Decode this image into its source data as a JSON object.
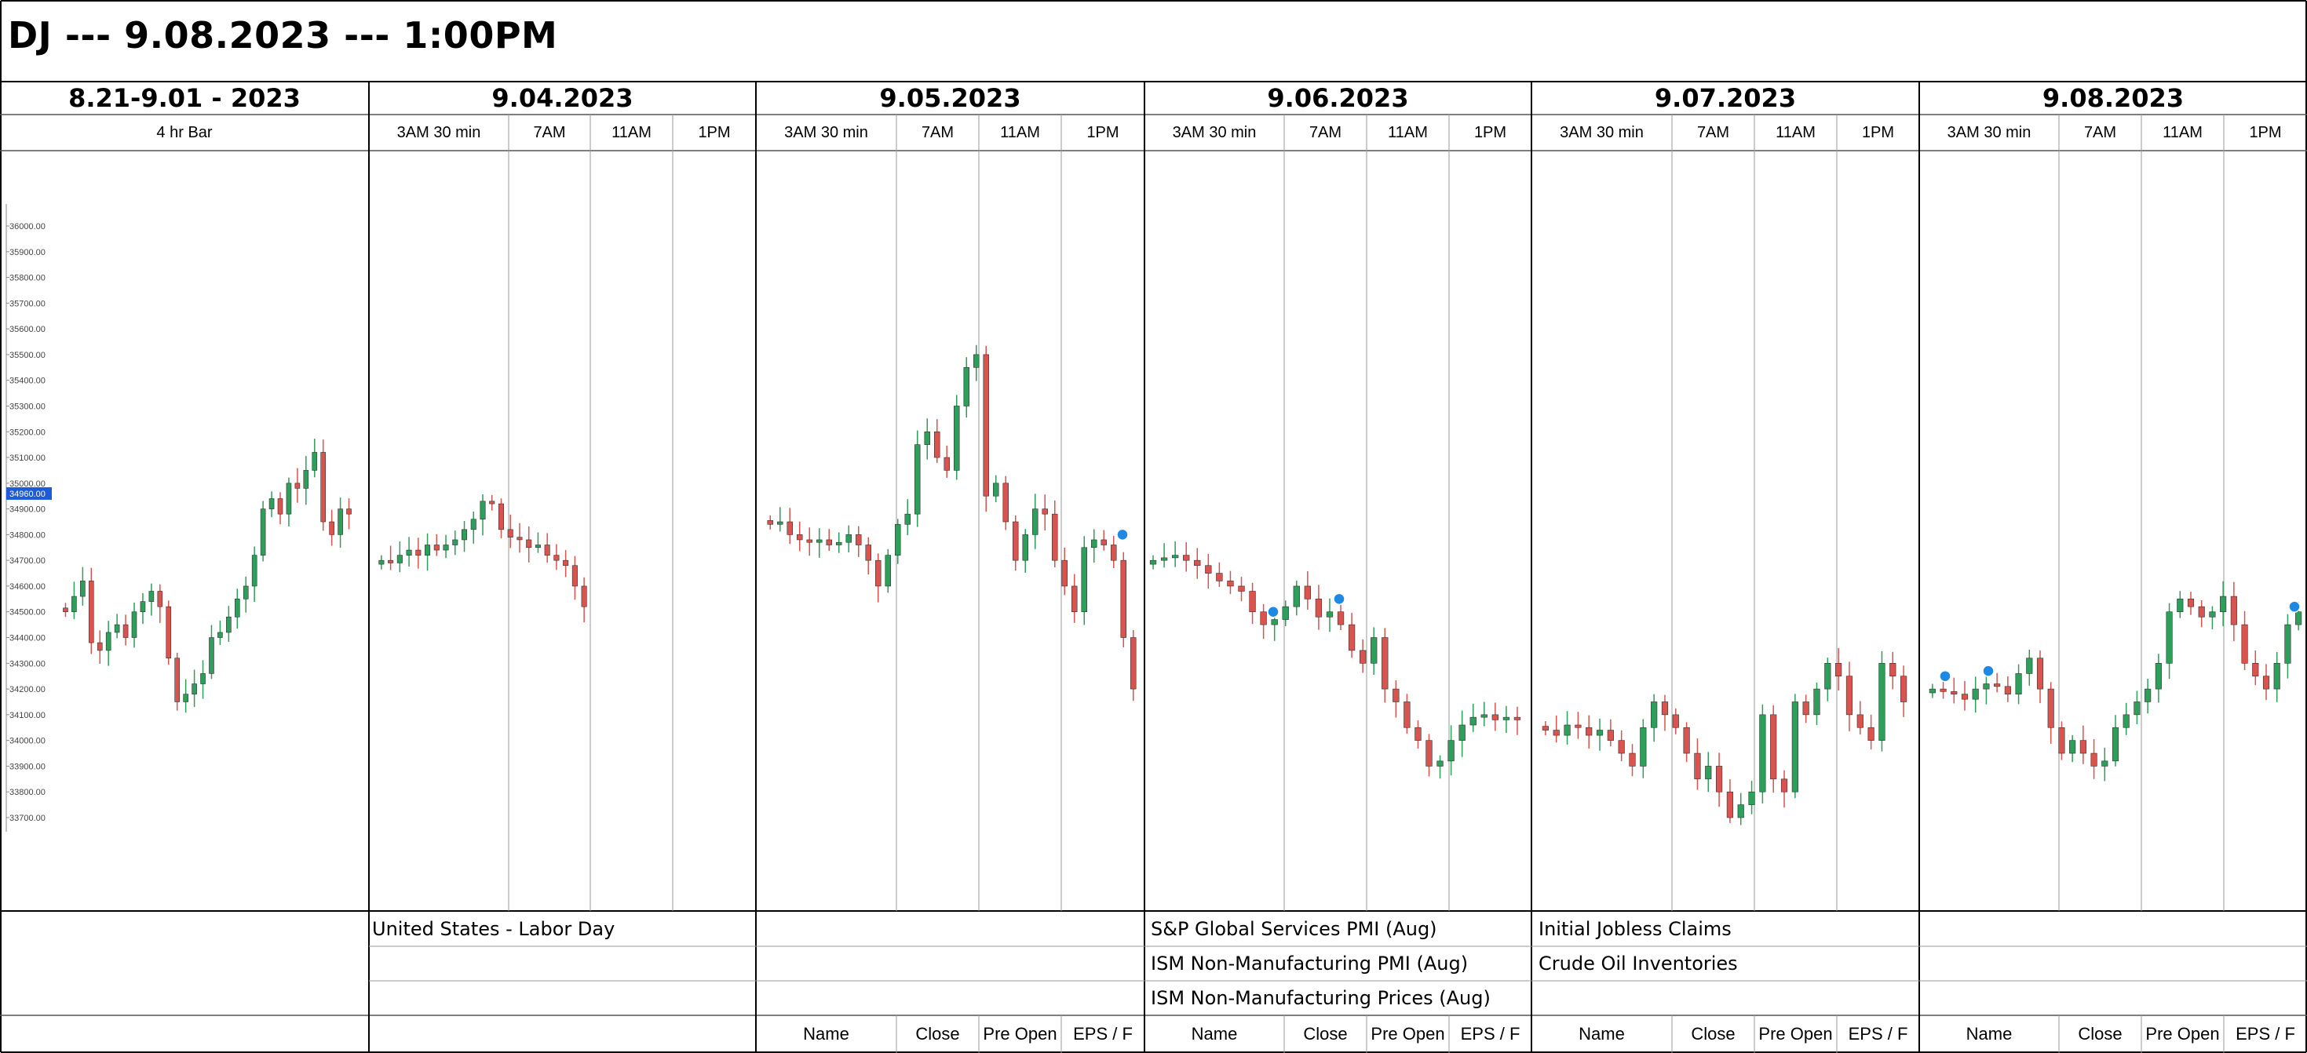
{
  "title": "DJ --- 9.08.2023 --- 1:00PM",
  "panels": [
    {
      "header": "8.21-9.01 - 2023",
      "subheaders": [
        "4 hr Bar"
      ]
    },
    {
      "header": "9.04.2023",
      "subheaders": [
        "3AM 30 min",
        "7AM",
        "11AM",
        "1PM"
      ]
    },
    {
      "header": "9.05.2023",
      "subheaders": [
        "3AM 30 min",
        "7AM",
        "11AM",
        "1PM"
      ]
    },
    {
      "header": "9.06.2023",
      "subheaders": [
        "3AM 30 min",
        "7AM",
        "11AM",
        "1PM"
      ]
    },
    {
      "header": "9.07.2023",
      "subheaders": [
        "3AM 30 min",
        "7AM",
        "11AM",
        "1PM"
      ]
    },
    {
      "header": "9.08.2023",
      "subheaders": [
        "3AM 30 min",
        "7AM",
        "11AM",
        "1PM"
      ]
    }
  ],
  "events": {
    "labor_day": "United States - Labor Day",
    "services_pmi": "S&P Global Services PMI (Aug)",
    "ism_pmi": "ISM Non-Manufacturing PMI (Aug)",
    "ism_prices": "ISM Non-Manufacturing Prices (Aug)",
    "jobless": "Initial Jobless Claims",
    "crude": "Crude Oil Inventories"
  },
  "footer_columns": [
    "Name",
    "Close",
    "Pre Open",
    "EPS / F"
  ],
  "chart_data": {
    "type": "candlestick",
    "title": "",
    "ylim": [
      33600,
      36100
    ],
    "y_ticks": [
      36000,
      35900,
      35800,
      35700,
      35600,
      35500,
      35400,
      35300,
      35200,
      35100,
      35000,
      34900,
      34800,
      34700,
      34600,
      34500,
      34400,
      34300,
      34200,
      34100,
      34000,
      33900,
      33800,
      33700
    ],
    "current_price_label": "34960.00",
    "colors": {
      "up": "#2e9e5b",
      "down": "#d9534f",
      "marker": "#1e88e5",
      "price_tag": "#1e5bd6"
    },
    "segments": [
      {
        "panel": "8.21-9.01 - 2023",
        "closes": [
          34500,
          34560,
          34620,
          34380,
          34350,
          34420,
          34450,
          34400,
          34500,
          34540,
          34580,
          34520,
          34320,
          34150,
          34180,
          34220,
          34260,
          34400,
          34420,
          34480,
          34550,
          34600,
          34720,
          34900,
          34940,
          34880,
          35000,
          34980,
          35050,
          35120,
          34850,
          34800,
          34900,
          34880
        ]
      },
      {
        "panel": "9.04.2023",
        "closes": [
          34700,
          34690,
          34720,
          34740,
          34720,
          34760,
          34740,
          34760,
          34780,
          34820,
          34860,
          34930,
          34920,
          34820,
          34790,
          34780,
          34750,
          34760,
          34720,
          34700,
          34680,
          34600,
          34520
        ]
      },
      {
        "panel": "9.05.2023",
        "closes": [
          34840,
          34850,
          34800,
          34780,
          34770,
          34780,
          34760,
          34770,
          34800,
          34760,
          34700,
          34600,
          34720,
          34840,
          34880,
          35150,
          35200,
          35100,
          35050,
          35300,
          35450,
          35500,
          34950,
          35000,
          34850,
          34700,
          34800,
          34900,
          34880,
          34700,
          34600,
          34500,
          34750,
          34780,
          34760,
          34700,
          34400,
          34200
        ]
      },
      {
        "panel": "9.06.2023",
        "closes": [
          34700,
          34710,
          34720,
          34700,
          34680,
          34650,
          34620,
          34600,
          34580,
          34500,
          34450,
          34470,
          34520,
          34600,
          34550,
          34480,
          34500,
          34450,
          34350,
          34300,
          34400,
          34200,
          34150,
          34050,
          34000,
          33900,
          33920,
          34000,
          34060,
          34090,
          34100,
          34080,
          34090,
          34080
        ]
      },
      {
        "panel": "9.07.2023",
        "closes": [
          34040,
          34020,
          34060,
          34050,
          34020,
          34040,
          34000,
          33950,
          33900,
          34050,
          34150,
          34100,
          34050,
          33950,
          33850,
          33900,
          33800,
          33700,
          33750,
          33800,
          34100,
          33850,
          33800,
          34150,
          34100,
          34200,
          34300,
          34250,
          34100,
          34050,
          34000,
          34300,
          34250,
          34150
        ]
      },
      {
        "panel": "9.08.2023",
        "closes": [
          34200,
          34190,
          34180,
          34160,
          34200,
          34220,
          34210,
          34180,
          34260,
          34320,
          34200,
          34050,
          33950,
          34000,
          33950,
          33900,
          33920,
          34050,
          34100,
          34150,
          34200,
          34300,
          34500,
          34550,
          34520,
          34480,
          34500,
          34560,
          34450,
          34300,
          34250,
          34200,
          34300,
          34450,
          34500
        ]
      }
    ]
  }
}
